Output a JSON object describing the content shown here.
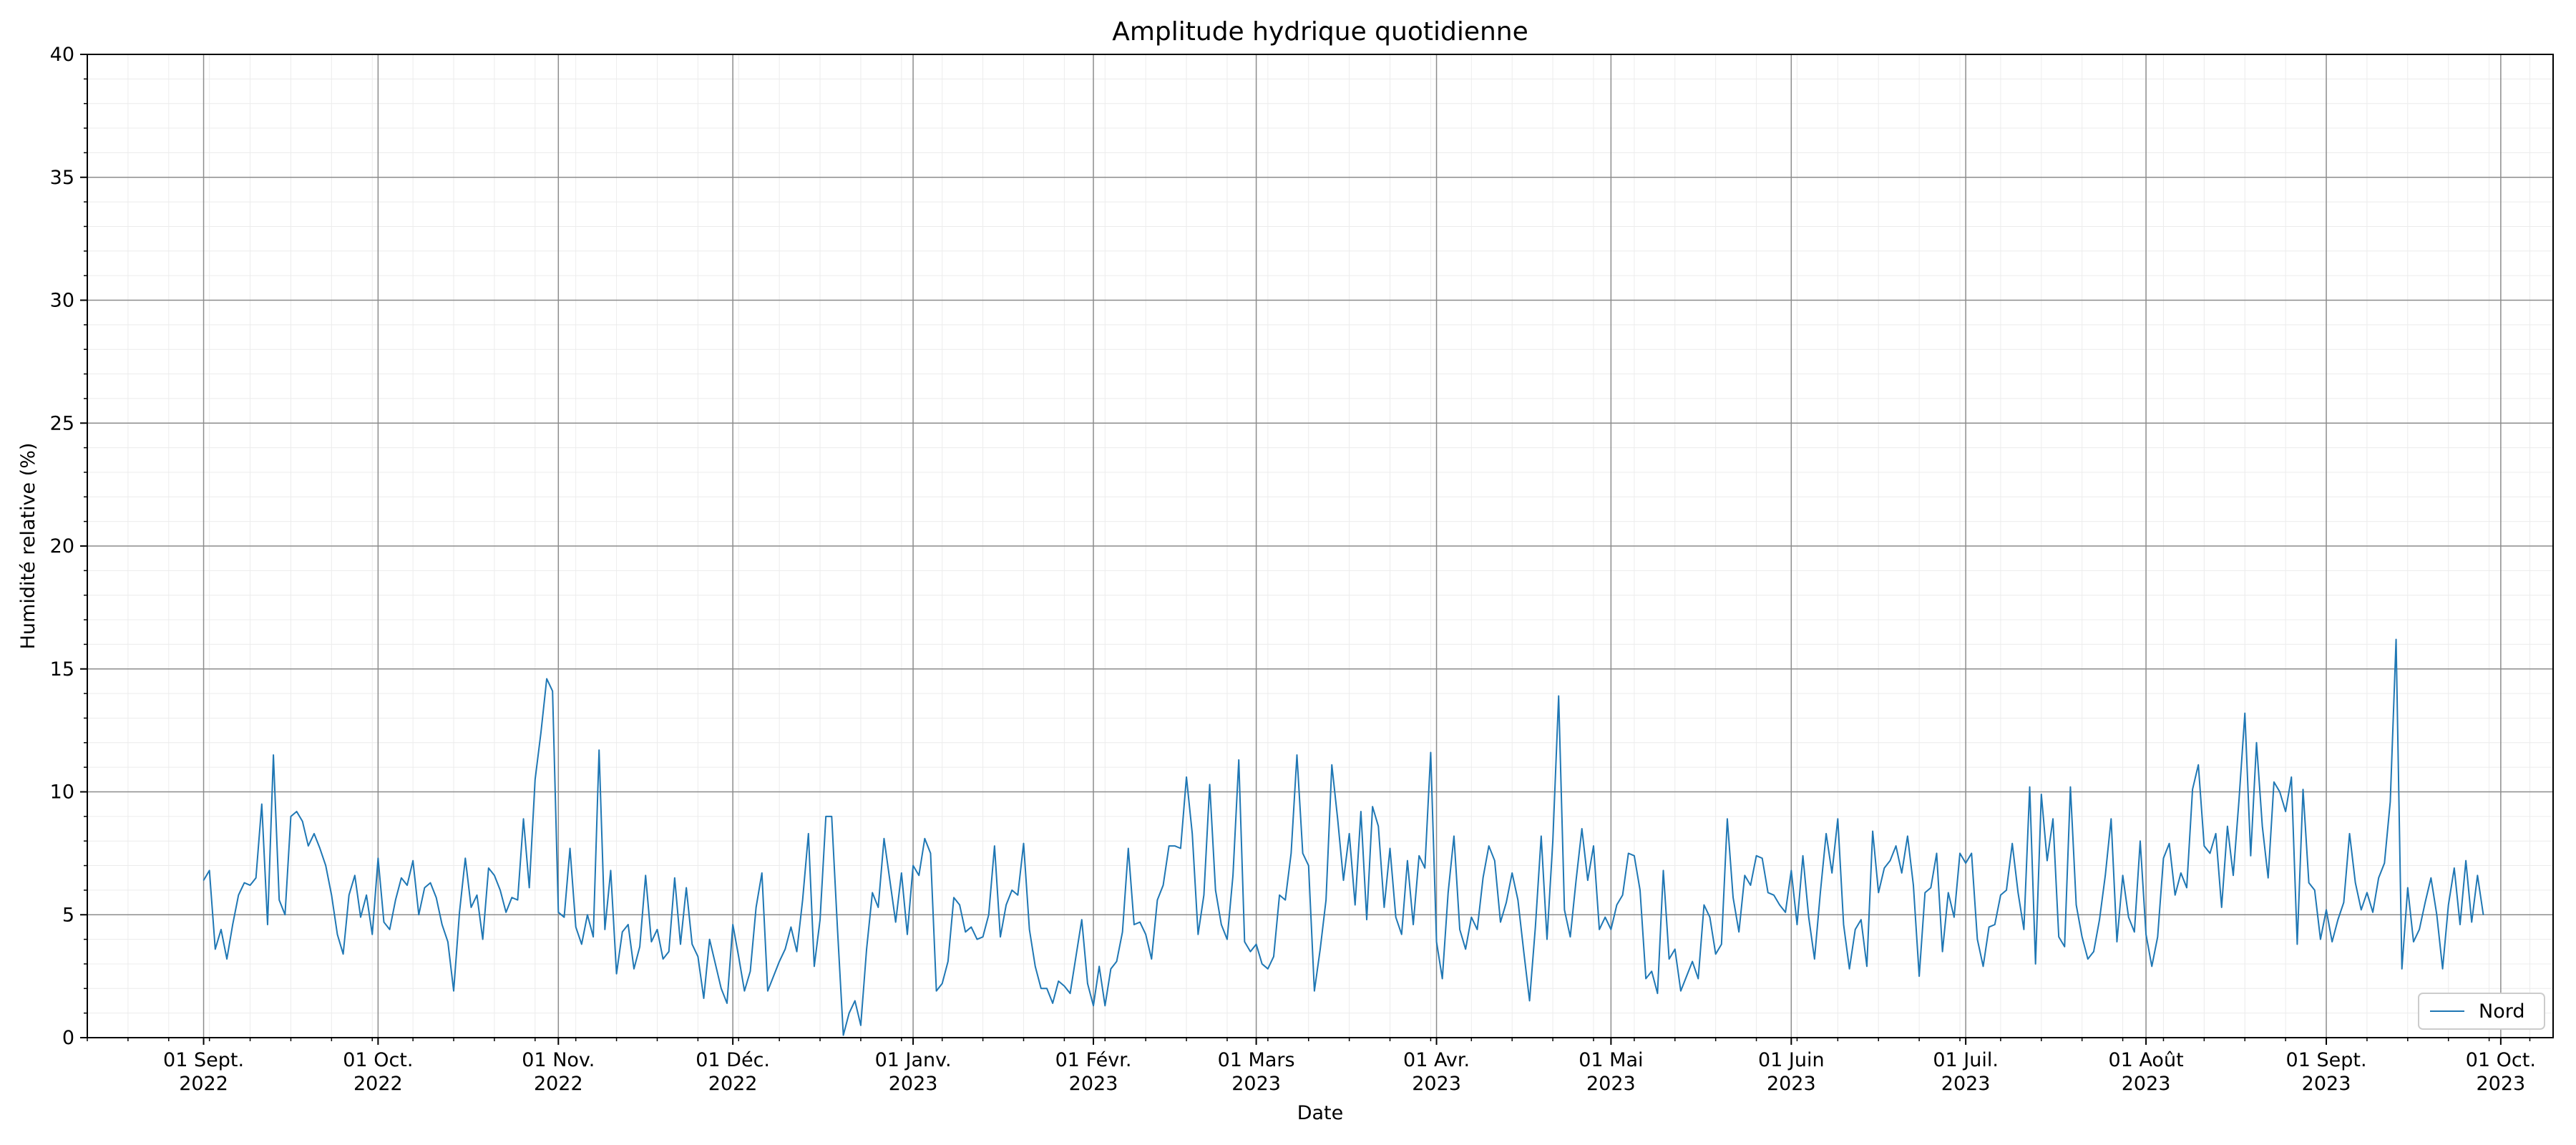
{
  "chart_data": {
    "type": "line",
    "title": "Amplitude hydrique quotidienne",
    "xlabel": "Date",
    "ylabel": "Humidité relative (%)",
    "ylim": [
      0,
      40
    ],
    "yticks": [
      0,
      5,
      10,
      15,
      20,
      25,
      30,
      35,
      40
    ],
    "xlim": [
      "2022-08-12",
      "2023-10-10"
    ],
    "xticks": [
      {
        "date": "2022-09-01",
        "month": "01 Sept.",
        "year": "2022"
      },
      {
        "date": "2022-10-01",
        "month": "01 Oct.",
        "year": "2022"
      },
      {
        "date": "2022-11-01",
        "month": "01 Nov.",
        "year": "2022"
      },
      {
        "date": "2022-12-01",
        "month": "01 Déc.",
        "year": "2022"
      },
      {
        "date": "2023-01-01",
        "month": "01 Janv.",
        "year": "2023"
      },
      {
        "date": "2023-02-01",
        "month": "01 Févr.",
        "year": "2023"
      },
      {
        "date": "2023-03-01",
        "month": "01 Mars",
        "year": "2023"
      },
      {
        "date": "2023-04-01",
        "month": "01 Avr.",
        "year": "2023"
      },
      {
        "date": "2023-05-01",
        "month": "01 Mai",
        "year": "2023"
      },
      {
        "date": "2023-06-01",
        "month": "01 Juin",
        "year": "2023"
      },
      {
        "date": "2023-07-01",
        "month": "01 Juil.",
        "year": "2023"
      },
      {
        "date": "2023-08-01",
        "month": "01 Août",
        "year": "2023"
      },
      {
        "date": "2023-09-01",
        "month": "01 Sept.",
        "year": "2023"
      },
      {
        "date": "2023-10-01",
        "month": "01 Oct.",
        "year": "2023"
      }
    ],
    "grid": true,
    "legend_position": "bottom-right",
    "series": [
      {
        "name": "Nord",
        "color": "#1f77b4",
        "start_date": "2022-09-01",
        "end_date": "2023-09-28",
        "values": [
          6.4,
          6.8,
          3.6,
          4.4,
          3.2,
          4.6,
          5.8,
          6.3,
          6.2,
          6.5,
          9.5,
          4.6,
          11.5,
          5.6,
          5.0,
          9.0,
          9.2,
          8.8,
          7.8,
          8.3,
          7.7,
          7.0,
          5.8,
          4.2,
          3.4,
          5.8,
          6.6,
          4.9,
          5.8,
          4.2,
          7.3,
          4.7,
          4.4,
          5.6,
          6.5,
          6.2,
          7.2,
          5.0,
          6.1,
          6.3,
          5.7,
          4.6,
          3.9,
          1.9,
          5.1,
          7.3,
          5.3,
          5.8,
          4.0,
          6.9,
          6.6,
          6.0,
          5.1,
          5.7,
          5.6,
          8.9,
          6.1,
          10.5,
          12.4,
          14.6,
          14.1,
          5.1,
          4.9,
          7.7,
          4.5,
          3.8,
          5.0,
          4.1,
          11.7,
          4.4,
          6.8,
          2.6,
          4.3,
          4.6,
          2.8,
          3.7,
          6.6,
          3.9,
          4.4,
          3.2,
          3.5,
          6.5,
          3.8,
          6.1,
          3.8,
          3.3,
          1.6,
          4.0,
          3.0,
          2.0,
          1.4,
          4.6,
          3.3,
          1.9,
          2.7,
          5.3,
          6.7,
          1.9,
          2.5,
          3.1,
          3.6,
          4.5,
          3.5,
          5.6,
          8.3,
          2.9,
          4.8,
          9.0,
          9.0,
          4.4,
          0.1,
          1.0,
          1.5,
          0.5,
          3.6,
          5.9,
          5.3,
          8.1,
          6.4,
          4.7,
          6.7,
          4.2,
          7.0,
          6.6,
          8.1,
          7.5,
          1.9,
          2.2,
          3.1,
          5.7,
          5.4,
          4.3,
          4.5,
          4.0,
          4.1,
          5.0,
          7.8,
          4.1,
          5.4,
          6.0,
          5.8,
          7.9,
          4.4,
          2.9,
          2.0,
          2.0,
          1.4,
          2.3,
          2.1,
          1.8,
          3.3,
          4.8,
          2.2,
          1.3,
          2.9,
          1.3,
          2.8,
          3.1,
          4.3,
          7.7,
          4.6,
          4.7,
          4.2,
          3.2,
          5.6,
          6.2,
          7.8,
          7.8,
          7.7,
          10.6,
          8.3,
          4.2,
          5.8,
          10.3,
          6.0,
          4.6,
          4.0,
          6.6,
          11.3,
          3.9,
          3.5,
          3.8,
          3.0,
          2.8,
          3.3,
          5.8,
          5.6,
          7.5,
          11.5,
          7.5,
          7.0,
          1.9,
          3.6,
          5.6,
          11.1,
          8.9,
          6.4,
          8.3,
          5.4,
          9.2,
          4.8,
          9.4,
          8.6,
          5.3,
          7.7,
          4.9,
          4.2,
          7.2,
          4.6,
          7.4,
          6.9,
          11.6,
          3.9,
          2.4,
          5.9,
          8.2,
          4.4,
          3.6,
          4.9,
          4.4,
          6.5,
          7.8,
          7.2,
          4.7,
          5.5,
          6.7,
          5.6,
          3.5,
          1.5,
          4.5,
          8.2,
          4.0,
          8.0,
          13.9,
          5.2,
          4.1,
          6.4,
          8.5,
          6.4,
          7.8,
          4.4,
          4.9,
          4.4,
          5.4,
          5.8,
          7.5,
          7.4,
          6.0,
          2.4,
          2.7,
          1.8,
          6.8,
          3.2,
          3.6,
          1.9,
          2.5,
          3.1,
          2.4,
          5.4,
          4.9,
          3.4,
          3.8,
          8.9,
          5.7,
          4.3,
          6.6,
          6.2,
          7.4,
          7.3,
          5.9,
          5.8,
          5.4,
          5.1,
          6.8,
          4.6,
          7.4,
          4.9,
          3.2,
          5.9,
          8.3,
          6.7,
          8.9,
          4.6,
          2.8,
          4.4,
          4.8,
          2.9,
          8.4,
          5.9,
          6.9,
          7.2,
          7.8,
          6.7,
          8.2,
          6.2,
          2.5,
          5.9,
          6.1,
          7.5,
          3.5,
          5.9,
          4.9,
          7.5,
          7.1,
          7.5,
          4.0,
          2.9,
          4.5,
          4.6,
          5.8,
          6.0,
          7.9,
          5.9,
          4.4,
          10.2,
          3.0,
          9.9,
          7.2,
          8.9,
          4.1,
          3.7,
          10.2,
          5.4,
          4.1,
          3.2,
          3.5,
          4.8,
          6.6,
          8.9,
          3.9,
          6.6,
          4.9,
          4.3,
          8.0,
          4.2,
          2.9,
          4.1,
          7.3,
          7.9,
          5.8,
          6.7,
          6.1,
          10.1,
          11.1,
          7.8,
          7.5,
          8.3,
          5.3,
          8.6,
          6.6,
          9.7,
          13.2,
          7.4,
          12.0,
          8.6,
          6.5,
          10.4,
          10.0,
          9.2,
          10.6,
          3.8,
          10.1,
          6.3,
          6.0,
          4.0,
          5.2,
          3.9,
          4.8,
          5.5,
          8.3,
          6.3,
          5.2,
          5.9,
          5.1,
          6.5,
          7.1,
          9.6,
          16.2,
          2.8,
          6.1,
          3.9,
          4.4,
          5.5,
          6.5,
          5.0,
          2.8,
          5.4,
          6.9,
          4.6,
          7.2,
          4.7,
          6.6,
          5.0
        ]
      }
    ]
  }
}
